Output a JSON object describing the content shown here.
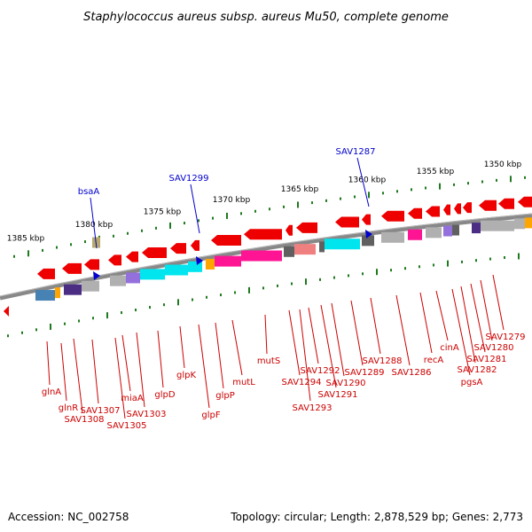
{
  "title": "Staphylococcus aureus subsp. aureus Mu50, complete genome",
  "accession": "Accession: NC_002758",
  "topology": "Topology: circular; Length: 2,878,529 bp; Genes: 2,773",
  "scale_labels": [
    "1385 kbp",
    "1380 kbp",
    "1375 kbp",
    "1370 kbp",
    "1365 kbp",
    "1360 kbp",
    "1355 kbp",
    "1350 kbp"
  ],
  "top_labels": [
    "bsaA",
    "SAV1299",
    "SAV1287"
  ],
  "bottom_labels": [
    "glnA",
    "glnR",
    "SAV1308",
    "SAV1307",
    "SAV1305",
    "miaA",
    "SAV1303",
    "glpD",
    "glpK",
    "glpF",
    "glpP",
    "mutL",
    "mutS",
    "SAV1294",
    "SAV1293",
    "SAV1292",
    "SAV1291",
    "SAV1290",
    "SAV1289",
    "SAV1288",
    "SAV1286",
    "recA",
    "cinA",
    "pgsA",
    "SAV1282",
    "SAV1281",
    "SAV1280",
    "SAV1279"
  ],
  "colors": {
    "gene_red": "#ee0000",
    "tick_green": "#1f7a1f",
    "backbone_grey": "#888888",
    "top_label_blue": "#0000cc",
    "bottom_label_red": "#cc0000",
    "cyan": "#00e5ee",
    "magenta": "#ff1493",
    "grey_block": "#b0b0b0",
    "dark_grey": "#606060",
    "steelblue": "#4682b4",
    "orange": "#ffa500",
    "purple": "#4b2e83",
    "lavender": "#9370db",
    "pink": "#f08080",
    "olive": "#b8a96a"
  }
}
